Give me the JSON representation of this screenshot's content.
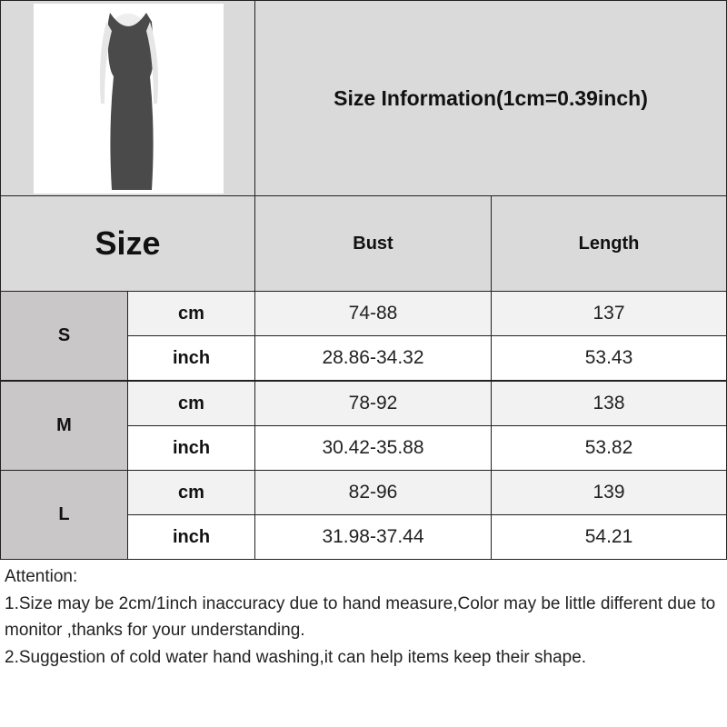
{
  "title": "Size Information(1cm=0.39inch)",
  "header": {
    "size": "Size",
    "bust": "Bust",
    "length": "Length"
  },
  "rows": [
    {
      "size": "S",
      "cm": {
        "unit": "cm",
        "bust": "74-88",
        "length": "137"
      },
      "inch": {
        "unit": "inch",
        "bust": "28.86-34.32",
        "length": "53.43"
      }
    },
    {
      "size": "M",
      "cm": {
        "unit": "cm",
        "bust": "78-92",
        "length": "138"
      },
      "inch": {
        "unit": "inch",
        "bust": "30.42-35.88",
        "length": "53.82"
      }
    },
    {
      "size": "L",
      "cm": {
        "unit": "cm",
        "bust": "82-96",
        "length": "139"
      },
      "inch": {
        "unit": "inch",
        "bust": "31.98-37.44",
        "length": "54.21"
      }
    }
  ],
  "attention": {
    "heading": "Attention:",
    "line1": "1.Size may be 2cm/1inch inaccuracy due to hand measure,Color may be little different due to monitor ,thanks for your understanding.",
    "line2": "2.Suggestion of cold water hand washing,it can help items keep their shape."
  }
}
